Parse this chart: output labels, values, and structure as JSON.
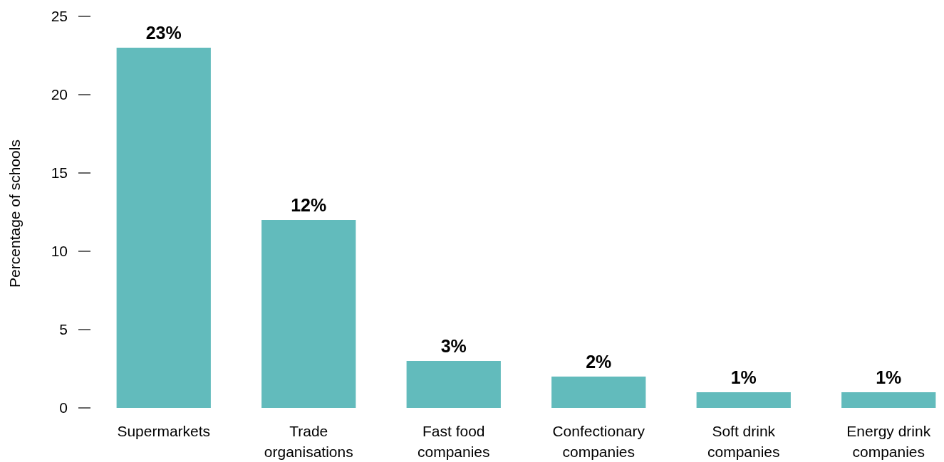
{
  "chart_data": {
    "type": "bar",
    "ylabel": "Percentage of schools",
    "categories": [
      "Supermarkets",
      "Trade organisations",
      "Fast food companies",
      "Confectionary companies",
      "Soft drink companies",
      "Energy drink companies"
    ],
    "values": [
      23,
      12,
      3,
      2,
      1,
      1
    ],
    "value_labels": [
      "23%",
      "12%",
      "3%",
      "2%",
      "1%",
      "1%"
    ],
    "color": "#62bbbc",
    "ylim": [
      0,
      25
    ],
    "yticks": [
      0,
      5,
      10,
      15,
      20,
      25
    ],
    "grid": false
  }
}
